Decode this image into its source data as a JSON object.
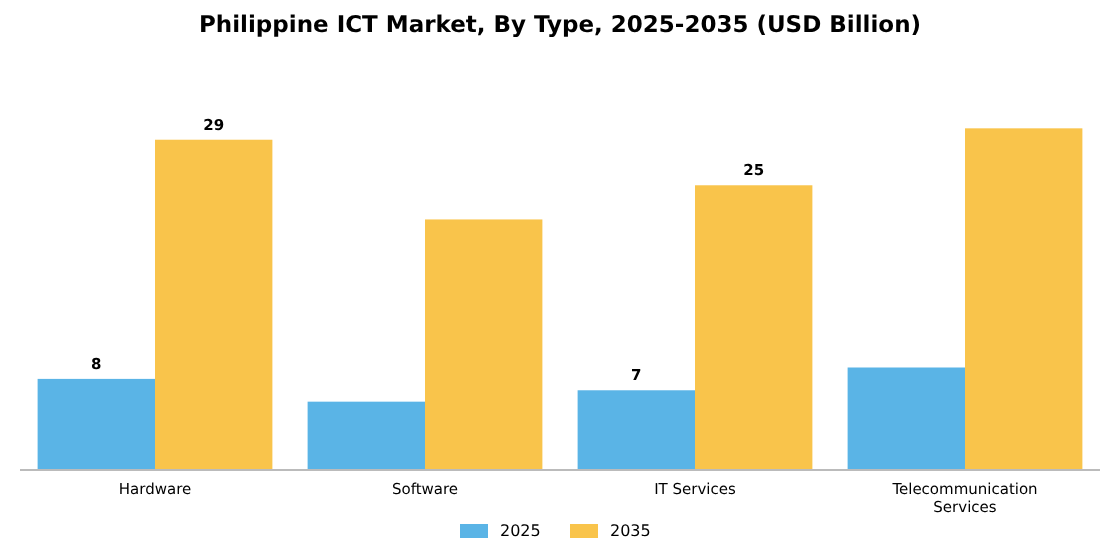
{
  "chart_data": {
    "type": "bar",
    "title": "Philippine ICT Market, By Type, 2025-2035 (USD Billion)",
    "categories": [
      "Hardware",
      "Software",
      "IT Services",
      "Telecommunication Services"
    ],
    "series": [
      {
        "name": "2025",
        "color": "#5ab4e6",
        "values": [
          8,
          6,
          7,
          9
        ],
        "value_labels": [
          "8",
          null,
          "7",
          null
        ]
      },
      {
        "name": "2035",
        "color": "#f9c44b",
        "values": [
          29,
          22,
          25,
          30
        ],
        "value_labels": [
          "29",
          null,
          "25",
          null
        ]
      }
    ],
    "legend": "bottom"
  }
}
